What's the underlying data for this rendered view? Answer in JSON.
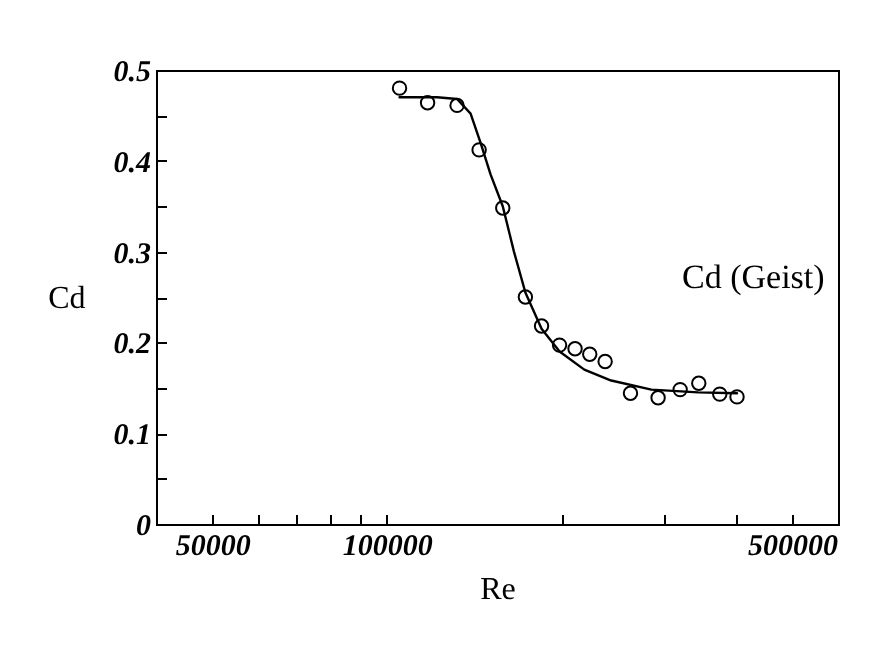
{
  "chart_data": {
    "type": "scatter",
    "xlabel": "Re",
    "ylabel": "Cd",
    "log": "x",
    "xlim": [
      40000,
      600000
    ],
    "xticks": [
      50000,
      {
        "value": 60000,
        "label": null
      },
      {
        "value": 70000,
        "label": null
      },
      {
        "value": 80000,
        "label": null
      },
      {
        "value": 90000,
        "label": null
      },
      100000,
      {
        "value": 200000,
        "label": null
      },
      {
        "value": 300000,
        "label": null
      },
      {
        "value": 400000,
        "label": null
      },
      500000
    ],
    "ylim": [
      0,
      0.5
    ],
    "yticks": [
      0,
      {
        "value": 0.05,
        "label": null
      },
      0.1,
      {
        "value": 0.15,
        "label": null
      },
      0.2,
      {
        "value": 0.25,
        "label": null
      },
      0.3,
      {
        "value": 0.35,
        "label": null
      },
      0.4,
      {
        "value": 0.45,
        "label": null
      },
      0.5
    ],
    "series": [
      {
        "type": "line",
        "color": "#000000",
        "line_style": "solid",
        "x": [
          105200,
          122100,
          132200,
          139500,
          145100,
          151000,
          158500,
          165700,
          173400,
          184900,
          198600,
          219100,
          243800,
          286000,
          344400,
          401800
        ],
        "values": [
          0.47,
          0.47,
          0.468,
          0.452,
          0.42,
          0.385,
          0.35,
          0.3,
          0.255,
          0.215,
          0.19,
          0.17,
          0.158,
          0.148,
          0.145,
          0.144
        ]
      },
      {
        "name": "Cd (Geist)",
        "color": "#000000",
        "marker": "circle",
        "x": [
          105200,
          117600,
          132200,
          144300,
          158500,
          173400,
          184900,
          198600,
          211200,
          223900,
          238000,
          263200,
          293700,
          320600,
          345200,
          375200,
          401800
        ],
        "values": [
          0.48,
          0.464,
          0.461,
          0.412,
          0.348,
          0.25,
          0.218,
          0.197,
          0.193,
          0.187,
          0.179,
          0.144,
          0.139,
          0.148,
          0.155,
          0.143,
          0.14
        ]
      }
    ]
  }
}
